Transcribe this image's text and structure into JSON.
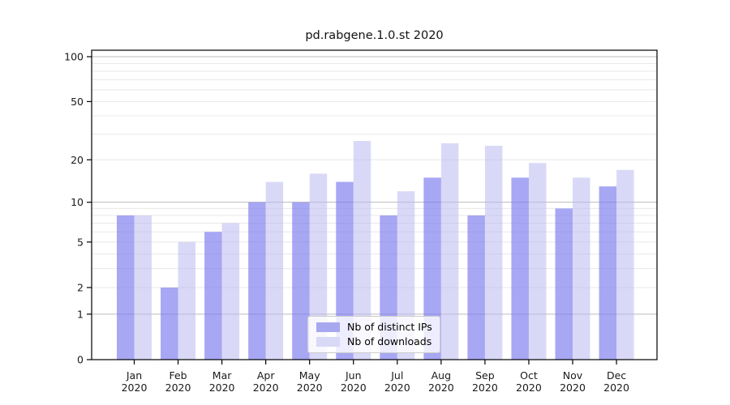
{
  "chart_data": {
    "type": "bar",
    "title": "pd.rabgene.1.0.st 2020",
    "categories": [
      "Jan 2020",
      "Feb 2020",
      "Mar 2020",
      "Apr 2020",
      "May 2020",
      "Jun 2020",
      "Jul 2020",
      "Aug 2020",
      "Sep 2020",
      "Oct 2020",
      "Nov 2020",
      "Dec 2020"
    ],
    "series": [
      {
        "name": "Nb of distinct IPs",
        "values": [
          8,
          2,
          6,
          10,
          10,
          14,
          8,
          15,
          8,
          15,
          9,
          13
        ],
        "bar_color": "rgba(121,121,238,0.66)",
        "legend_color": "#a8a8f0"
      },
      {
        "name": "Nb of downloads",
        "values": [
          8,
          5,
          7,
          14,
          16,
          27,
          12,
          26,
          25,
          19,
          15,
          17
        ],
        "bar_color": "rgba(185,185,241,0.55)",
        "legend_color": "#d8d8f7"
      }
    ],
    "xlabel": "",
    "ylabel": "",
    "yscale": "log1p",
    "ylim": [
      0,
      110
    ],
    "ytick_labels": [
      0,
      1,
      2,
      5,
      10,
      20,
      50,
      100
    ],
    "grid": "on",
    "gridlines_major": [
      1,
      10,
      100
    ],
    "gridlines_minor": [
      2,
      3,
      4,
      5,
      6,
      7,
      8,
      9,
      20,
      30,
      40,
      50,
      60,
      70,
      80,
      90
    ],
    "legend_position": "inside lower center",
    "colors": {
      "grid_major": "#bbbbbb",
      "grid_minor": "#e8e8e8",
      "spine": "#000000",
      "tick_text": "#1a1a1a",
      "title_text": "#111111"
    }
  }
}
